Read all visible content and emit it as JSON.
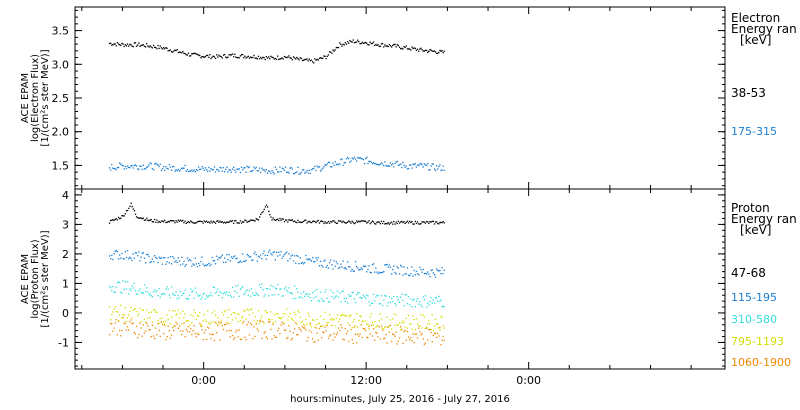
{
  "chart_data": [
    {
      "type": "scatter",
      "ylabel": [
        "ACE EPAM",
        "log(Electron Flux)",
        "[1/(cm²s ster MeV)]"
      ],
      "ylim": [
        1.15,
        3.85
      ],
      "yticks": [
        1.5,
        2.0,
        2.5,
        3.0,
        3.5
      ],
      "ytick_labels": [
        "1.5",
        "2.0",
        "2.5",
        "3.0",
        "3.5"
      ],
      "legend_title": [
        "Electron",
        "Energy ran",
        "[keV]"
      ],
      "series": [
        {
          "name": "38-53",
          "color": "#000000",
          "x": [
            -7,
            -6,
            -5,
            -4,
            -3,
            -2,
            -1,
            0,
            1,
            2,
            3,
            4,
            5,
            6,
            7,
            8,
            9,
            10,
            11,
            12,
            13,
            14,
            15,
            16,
            17,
            17.8
          ],
          "y": [
            3.32,
            3.3,
            3.3,
            3.28,
            3.25,
            3.2,
            3.15,
            3.13,
            3.12,
            3.14,
            3.13,
            3.12,
            3.1,
            3.12,
            3.08,
            3.05,
            3.12,
            3.3,
            3.35,
            3.33,
            3.3,
            3.28,
            3.25,
            3.22,
            3.2,
            3.18
          ]
        },
        {
          "name": "175-315",
          "color": "#1a7fd4",
          "x": [
            -7,
            -6,
            -5,
            -4,
            -3,
            -2,
            -1,
            0,
            1,
            2,
            3,
            4,
            5,
            6,
            7,
            8,
            9,
            10,
            11,
            12,
            13,
            14,
            15,
            16,
            17,
            17.8
          ],
          "y": [
            1.48,
            1.5,
            1.5,
            1.5,
            1.48,
            1.47,
            1.46,
            1.45,
            1.45,
            1.46,
            1.45,
            1.44,
            1.43,
            1.45,
            1.43,
            1.44,
            1.5,
            1.55,
            1.6,
            1.58,
            1.55,
            1.53,
            1.5,
            1.5,
            1.48,
            1.47
          ]
        }
      ]
    },
    {
      "type": "scatter",
      "ylabel": [
        "ACE EPAM",
        "log(Proton Flux)",
        "[1/(cm²s ster MeV)]"
      ],
      "ylim": [
        -1.9,
        4.2
      ],
      "yticks": [
        -1,
        0,
        1,
        2,
        3,
        4
      ],
      "ytick_labels": [
        "-1",
        "0",
        "1",
        "2",
        "3",
        "4"
      ],
      "legend_title": [
        "Proton",
        "Energy ran",
        "[keV]"
      ],
      "series": [
        {
          "name": "47-68",
          "color": "#000000",
          "x": [
            -7,
            -6,
            -5.4,
            -5,
            -4,
            -3,
            -2,
            -1,
            0,
            1,
            2,
            3,
            4,
            4.6,
            5,
            6,
            7,
            8,
            9,
            10,
            11,
            12,
            13,
            14,
            15,
            16,
            17,
            17.8
          ],
          "y": [
            3.1,
            3.3,
            3.7,
            3.3,
            3.15,
            3.12,
            3.12,
            3.1,
            3.1,
            3.1,
            3.1,
            3.12,
            3.2,
            3.7,
            3.2,
            3.15,
            3.12,
            3.12,
            3.1,
            3.1,
            3.1,
            3.1,
            3.08,
            3.08,
            3.08,
            3.08,
            3.08,
            3.08
          ]
        },
        {
          "name": "115-195",
          "color": "#1a7fd4",
          "x": [
            -7,
            -6,
            -5,
            -4,
            -3,
            -2,
            -1,
            0,
            1,
            2,
            3,
            4,
            5,
            6,
            7,
            8,
            9,
            10,
            11,
            12,
            13,
            14,
            15,
            16,
            17,
            17.8
          ],
          "y": [
            2.0,
            2.0,
            1.95,
            1.85,
            1.8,
            1.78,
            1.76,
            1.75,
            1.8,
            1.85,
            1.9,
            1.95,
            2.0,
            1.95,
            1.85,
            1.75,
            1.7,
            1.65,
            1.6,
            1.55,
            1.5,
            1.5,
            1.45,
            1.42,
            1.4,
            1.4
          ]
        },
        {
          "name": "310-580",
          "color": "#33dddd",
          "x": [
            -7,
            -6,
            -5,
            -4,
            -3,
            -2,
            -1,
            0,
            1,
            2,
            3,
            4,
            5,
            6,
            7,
            8,
            9,
            10,
            11,
            12,
            13,
            14,
            15,
            16,
            17,
            17.8
          ],
          "y": [
            0.95,
            0.9,
            0.85,
            0.75,
            0.7,
            0.68,
            0.65,
            0.65,
            0.7,
            0.72,
            0.75,
            0.78,
            0.82,
            0.75,
            0.7,
            0.65,
            0.6,
            0.55,
            0.55,
            0.5,
            0.48,
            0.45,
            0.45,
            0.42,
            0.42,
            0.42
          ]
        },
        {
          "name": "795-1193",
          "color": "#d4dd00",
          "x": [
            -7,
            -6,
            -5,
            -4,
            -3,
            -2,
            -1,
            0,
            1,
            2,
            3,
            4,
            5,
            6,
            7,
            8,
            9,
            10,
            11,
            12,
            13,
            14,
            15,
            16,
            17,
            17.8
          ],
          "y": [
            0.05,
            0.0,
            -0.05,
            -0.1,
            -0.12,
            -0.15,
            -0.15,
            -0.15,
            -0.12,
            -0.1,
            -0.1,
            -0.08,
            -0.05,
            -0.1,
            -0.15,
            -0.2,
            -0.2,
            -0.22,
            -0.22,
            -0.25,
            -0.25,
            -0.28,
            -0.28,
            -0.3,
            -0.3,
            -0.3
          ]
        },
        {
          "name": "1060-1900",
          "color": "#ee8800",
          "x": [
            -7,
            -6,
            -5,
            -4,
            -3,
            -2,
            -1,
            0,
            1,
            2,
            3,
            4,
            5,
            6,
            7,
            8,
            9,
            10,
            11,
            12,
            13,
            14,
            15,
            16,
            17,
            17.8
          ],
          "y": [
            -0.4,
            -0.45,
            -0.5,
            -0.55,
            -0.6,
            -0.6,
            -0.62,
            -0.62,
            -0.6,
            -0.58,
            -0.58,
            -0.55,
            -0.55,
            -0.6,
            -0.62,
            -0.65,
            -0.65,
            -0.68,
            -0.7,
            -0.7,
            -0.72,
            -0.72,
            -0.75,
            -0.75,
            -0.78,
            -0.78
          ]
        }
      ]
    }
  ],
  "x_axis": {
    "xlim": [
      -9.5,
      38.5
    ],
    "ticks": [
      0,
      12,
      24
    ],
    "tick_labels": [
      "0:00",
      "12:00",
      "0:00"
    ],
    "minor_every": 3,
    "title": "hours:minutes, July 25, 2016 - July 27, 2016"
  }
}
